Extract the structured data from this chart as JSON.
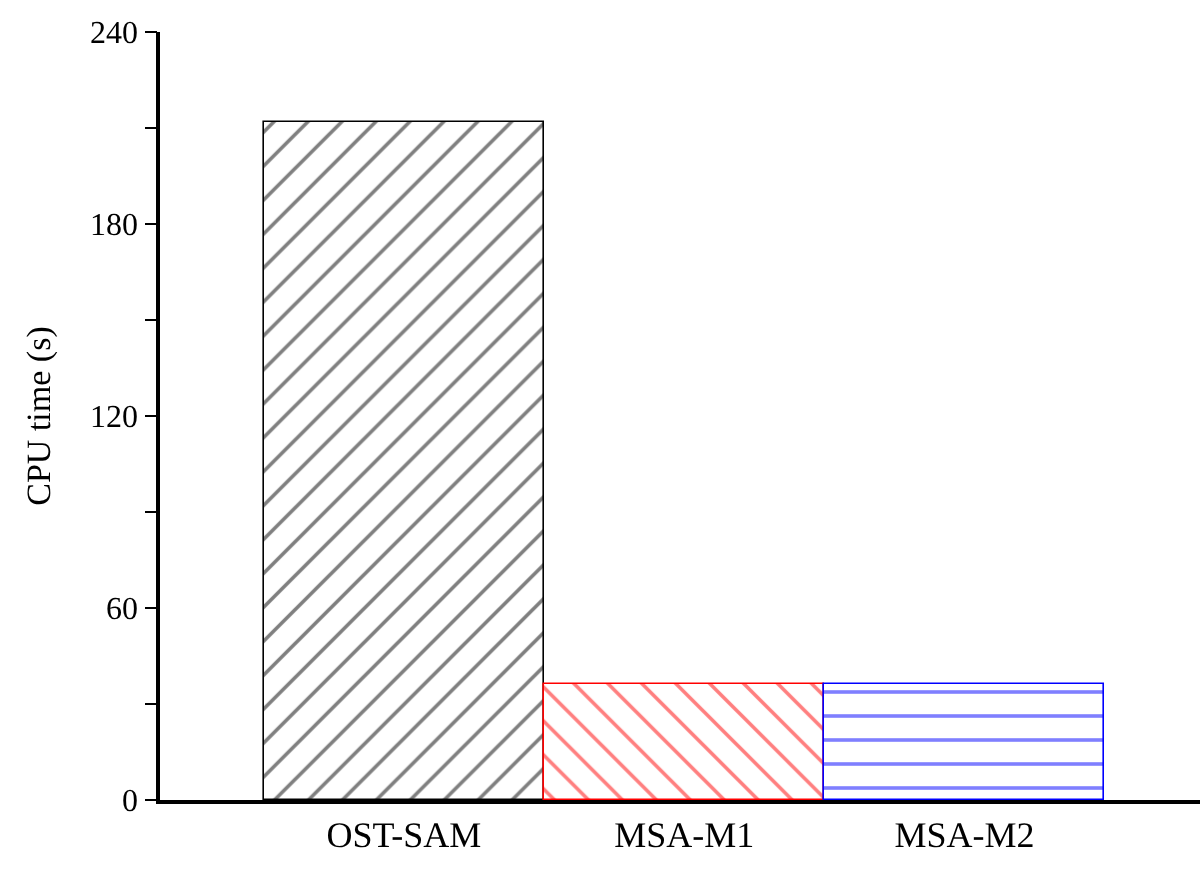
{
  "chart_data": {
    "type": "bar",
    "ylabel": "CPU time (s)",
    "categories": [
      "OST-SAM",
      "MSA-M1",
      "MSA-M2"
    ],
    "values": [
      212,
      36,
      36
    ],
    "colors": [
      "#000000",
      "#ff0000",
      "#0000ff"
    ],
    "ylim": [
      0,
      240
    ],
    "yticks": [
      0,
      {
        "value": 30,
        "label": null
      },
      60,
      {
        "value": 90,
        "label": null
      },
      120,
      {
        "value": 150,
        "label": null
      },
      180,
      {
        "value": 210,
        "label": null
      },
      240
    ]
  }
}
